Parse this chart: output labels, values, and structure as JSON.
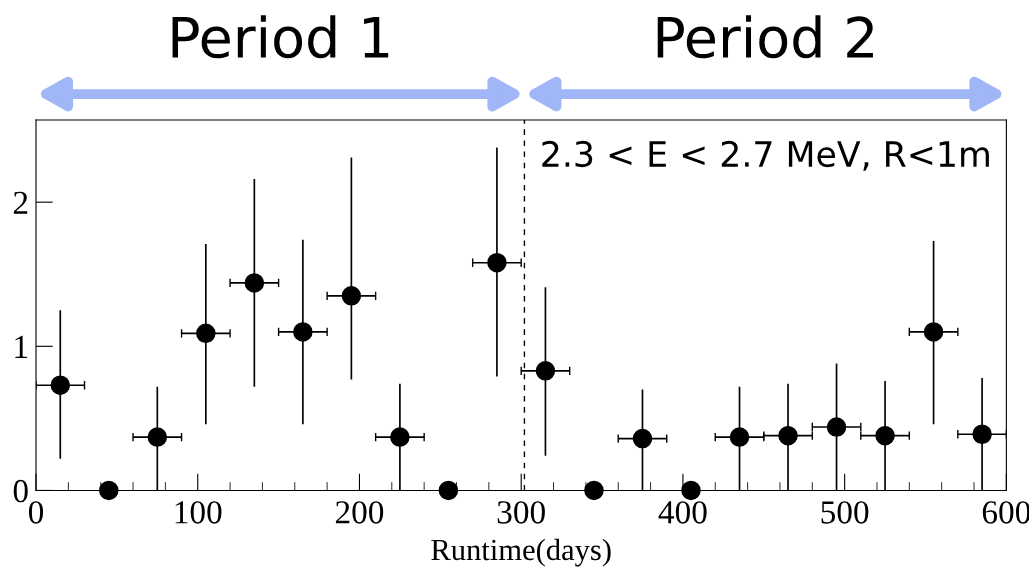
{
  "chart_data": {
    "type": "scatter",
    "xlabel": "Runtime(days)",
    "annotations": [
      "Period 1",
      "Period 2",
      "2.3 < E < 2.7 MeV, R<1m"
    ],
    "x": [
      15,
      45,
      75,
      105,
      135,
      165,
      195,
      225,
      255,
      285,
      315,
      345,
      375,
      405,
      435,
      465,
      495,
      525,
      555,
      585
    ],
    "values": [
      0.73,
      0,
      0.37,
      1.09,
      1.44,
      1.1,
      1.35,
      0.37,
      0,
      1.58,
      0.83,
      0,
      0.36,
      0,
      0.37,
      0.38,
      0.44,
      0.38,
      1.1,
      0.39
    ],
    "errors": [
      [
        0.22,
        1.25
      ],
      null,
      [
        0,
        0.72
      ],
      [
        0.46,
        1.71
      ],
      [
        0.72,
        2.16
      ],
      [
        0.46,
        1.74
      ],
      [
        0.77,
        2.31
      ],
      [
        0,
        0.74
      ],
      null,
      [
        0.79,
        2.38
      ],
      [
        0.24,
        1.41
      ],
      null,
      [
        0,
        0.7
      ],
      null,
      [
        0,
        0.72
      ],
      [
        0,
        0.74
      ],
      [
        0,
        0.88
      ],
      [
        0,
        0.76
      ],
      [
        0.46,
        1.73
      ],
      [
        0,
        0.78
      ]
    ],
    "xerrors": [
      15,
      null,
      15,
      15,
      15,
      15,
      15,
      15,
      null,
      15,
      15,
      null,
      15,
      null,
      15,
      15,
      15,
      15,
      15,
      15
    ],
    "color": "#000000",
    "marker": "circle",
    "xlim": [
      0,
      600
    ],
    "xticks": [
      0,
      100,
      200,
      300,
      400,
      500,
      600
    ],
    "ylim": [
      0,
      2.57
    ],
    "yticks": [
      0,
      1,
      2
    ],
    "ref_lines": [
      {
        "axis": "x",
        "value": 302,
        "color": "#000000",
        "line_style": "dashed"
      }
    ],
    "grid": false,
    "legend": false
  }
}
